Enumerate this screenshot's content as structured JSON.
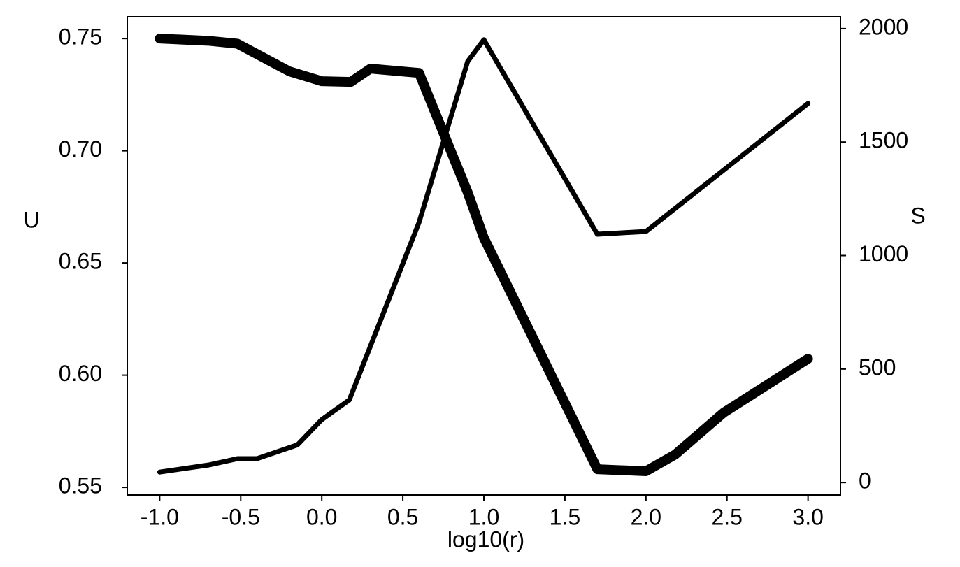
{
  "chart_data": {
    "type": "line",
    "xlabel": "log10(r)",
    "ylabel": "U",
    "y2label": "S",
    "xlim": [
      -1.2,
      3.2
    ],
    "xticks": [
      {
        "value": -1,
        "label": "-1.0"
      },
      -0.5,
      {
        "value": 0,
        "label": "0.0"
      },
      0.5,
      {
        "value": 1,
        "label": "1.0"
      },
      1.5,
      {
        "value": 2,
        "label": "2.0"
      },
      2.5,
      {
        "value": 3,
        "label": "3.0"
      }
    ],
    "ylim": [
      0.5466,
      0.7597
    ],
    "yticks": [
      0.55,
      {
        "value": 0.6,
        "label": "0.60"
      },
      0.65,
      {
        "value": 0.7,
        "label": "0.70"
      },
      0.75
    ],
    "y2lim": [
      -55,
      2052
    ],
    "y2ticks": [
      0,
      500,
      1000,
      1500,
      2000
    ],
    "series": [
      {
        "color": "#000000",
        "line_width": 14,
        "x": [
          -1.0,
          -0.7,
          -0.52,
          -0.2,
          0.0,
          0.18,
          0.3,
          0.6,
          0.9,
          1.0,
          1.7,
          2.0,
          2.18,
          2.48,
          3.0
        ],
        "values": [
          0.75,
          0.749,
          0.7477,
          0.7354,
          0.731,
          0.7307,
          0.7366,
          0.7347,
          0.6815,
          0.6612,
          0.5581,
          0.5572,
          0.5646,
          0.5833,
          0.6073
        ]
      },
      {
        "color": "#000000",
        "line_width": 7,
        "axis": "y2",
        "x": [
          -1.0,
          -0.7,
          -0.52,
          -0.4,
          -0.15,
          0.0,
          0.17,
          0.6,
          0.9,
          1.0,
          1.7,
          2.0,
          3.0
        ],
        "values": [
          46,
          77,
          105,
          105,
          166,
          277,
          364,
          1146,
          1855,
          1951,
          1094,
          1106,
          1670
        ]
      }
    ]
  }
}
